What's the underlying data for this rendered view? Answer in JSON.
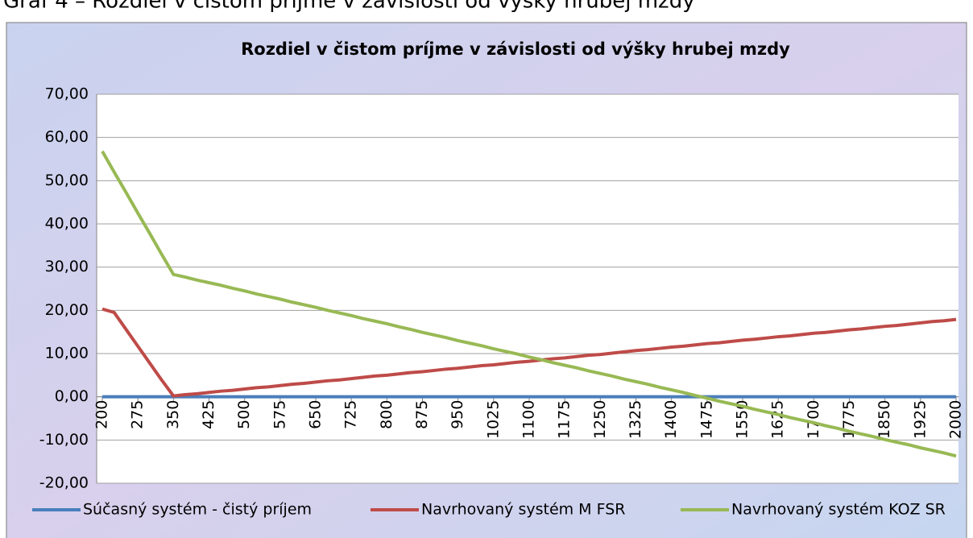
{
  "caption": "Graf 4 – Rozdiel v čistom príjme v závislosti od výšky hrubej mzdy",
  "chart_data": {
    "type": "line",
    "title": "Rozdiel v čistom príjme v závislosti od výšky hrubej mzdy",
    "x": [
      200,
      225,
      250,
      275,
      300,
      325,
      350,
      375,
      400,
      425,
      450,
      475,
      500,
      525,
      550,
      575,
      600,
      625,
      650,
      675,
      700,
      725,
      750,
      775,
      800,
      825,
      850,
      875,
      900,
      925,
      950,
      975,
      1000,
      1025,
      1050,
      1075,
      1100,
      1125,
      1150,
      1175,
      1200,
      1225,
      1250,
      1275,
      1300,
      1325,
      1350,
      1375,
      1400,
      1425,
      1450,
      1475,
      1500,
      1525,
      1550,
      1575,
      1600,
      1625,
      1650,
      1675,
      1700,
      1725,
      1750,
      1775,
      1800,
      1825,
      1850,
      1875,
      1900,
      1925,
      1950,
      1975,
      2000
    ],
    "xlim": [
      200,
      2000
    ],
    "xticks": [
      200,
      275,
      350,
      425,
      500,
      575,
      650,
      725,
      800,
      875,
      950,
      1025,
      1100,
      1175,
      1250,
      1325,
      1400,
      1475,
      1550,
      1625,
      1700,
      1775,
      1850,
      1925,
      2000
    ],
    "ylim": [
      -20,
      70
    ],
    "yticks": [
      {
        "value": -20,
        "label": "-20,00"
      },
      {
        "value": -10,
        "label": "-10,00"
      },
      {
        "value": 0,
        "label": "0,00"
      },
      {
        "value": 10,
        "label": "10,00"
      },
      {
        "value": 20,
        "label": "20,00"
      },
      {
        "value": 30,
        "label": "30,00"
      },
      {
        "value": 40,
        "label": "40,00"
      },
      {
        "value": 50,
        "label": "50,00"
      },
      {
        "value": 60,
        "label": "60,00"
      },
      {
        "value": 70,
        "label": "70,00"
      }
    ],
    "grid": true,
    "legend": "bottom",
    "series": [
      {
        "name": "Súčasný systém - čistý príjem",
        "color": "#4a7ebb",
        "values": [
          0,
          0,
          0,
          0,
          0,
          0,
          0,
          0,
          0,
          0,
          0,
          0,
          0,
          0,
          0,
          0,
          0,
          0,
          0,
          0,
          0,
          0,
          0,
          0,
          0,
          0,
          0,
          0,
          0,
          0,
          0,
          0,
          0,
          0,
          0,
          0,
          0,
          0,
          0,
          0,
          0,
          0,
          0,
          0,
          0,
          0,
          0,
          0,
          0,
          0,
          0,
          0,
          0,
          0,
          0,
          0,
          0,
          0,
          0,
          0,
          0,
          0,
          0,
          0,
          0,
          0,
          0,
          0,
          0,
          0,
          0,
          0,
          0
        ]
      },
      {
        "name": "Navrhovaný systém M FSR",
        "color": "#be4b48",
        "values": [
          20.3,
          19.5,
          15.6,
          11.7,
          7.8,
          3.9,
          0.2,
          0.5,
          0.7,
          1.0,
          1.3,
          1.5,
          1.8,
          2.1,
          2.3,
          2.6,
          2.9,
          3.1,
          3.4,
          3.7,
          3.9,
          4.2,
          4.5,
          4.8,
          5.0,
          5.3,
          5.6,
          5.8,
          6.1,
          6.4,
          6.6,
          6.9,
          7.2,
          7.4,
          7.7,
          8.0,
          8.2,
          8.5,
          8.8,
          9.0,
          9.3,
          9.6,
          9.8,
          10.1,
          10.4,
          10.7,
          10.9,
          11.2,
          11.5,
          11.7,
          12.0,
          12.3,
          12.5,
          12.8,
          13.1,
          13.3,
          13.6,
          13.9,
          14.1,
          14.4,
          14.7,
          14.9,
          15.2,
          15.5,
          15.7,
          16.0,
          16.3,
          16.5,
          16.8,
          17.1,
          17.4,
          17.6,
          17.9
        ]
      },
      {
        "name": "Navrhovaný systém KOZ SR",
        "color": "#98b954",
        "values": [
          56.8,
          52.0,
          47.3,
          42.5,
          37.8,
          33.0,
          28.3,
          27.7,
          27.0,
          26.4,
          25.8,
          25.1,
          24.5,
          23.8,
          23.2,
          22.6,
          21.9,
          21.3,
          20.7,
          20.0,
          19.4,
          18.8,
          18.1,
          17.5,
          16.9,
          16.2,
          15.6,
          14.9,
          14.3,
          13.7,
          13.0,
          12.4,
          11.8,
          11.1,
          10.5,
          9.9,
          9.2,
          8.6,
          7.9,
          7.3,
          6.7,
          6.0,
          5.4,
          4.8,
          4.1,
          3.5,
          2.9,
          2.2,
          1.6,
          1.0,
          0.3,
          -0.3,
          -1.0,
          -1.6,
          -2.2,
          -2.9,
          -3.5,
          -4.1,
          -4.8,
          -5.4,
          -6.0,
          -6.7,
          -7.3,
          -8.0,
          -8.6,
          -9.2,
          -9.9,
          -10.5,
          -11.1,
          -11.8,
          -12.4,
          -13.0,
          -13.7
        ]
      }
    ]
  }
}
